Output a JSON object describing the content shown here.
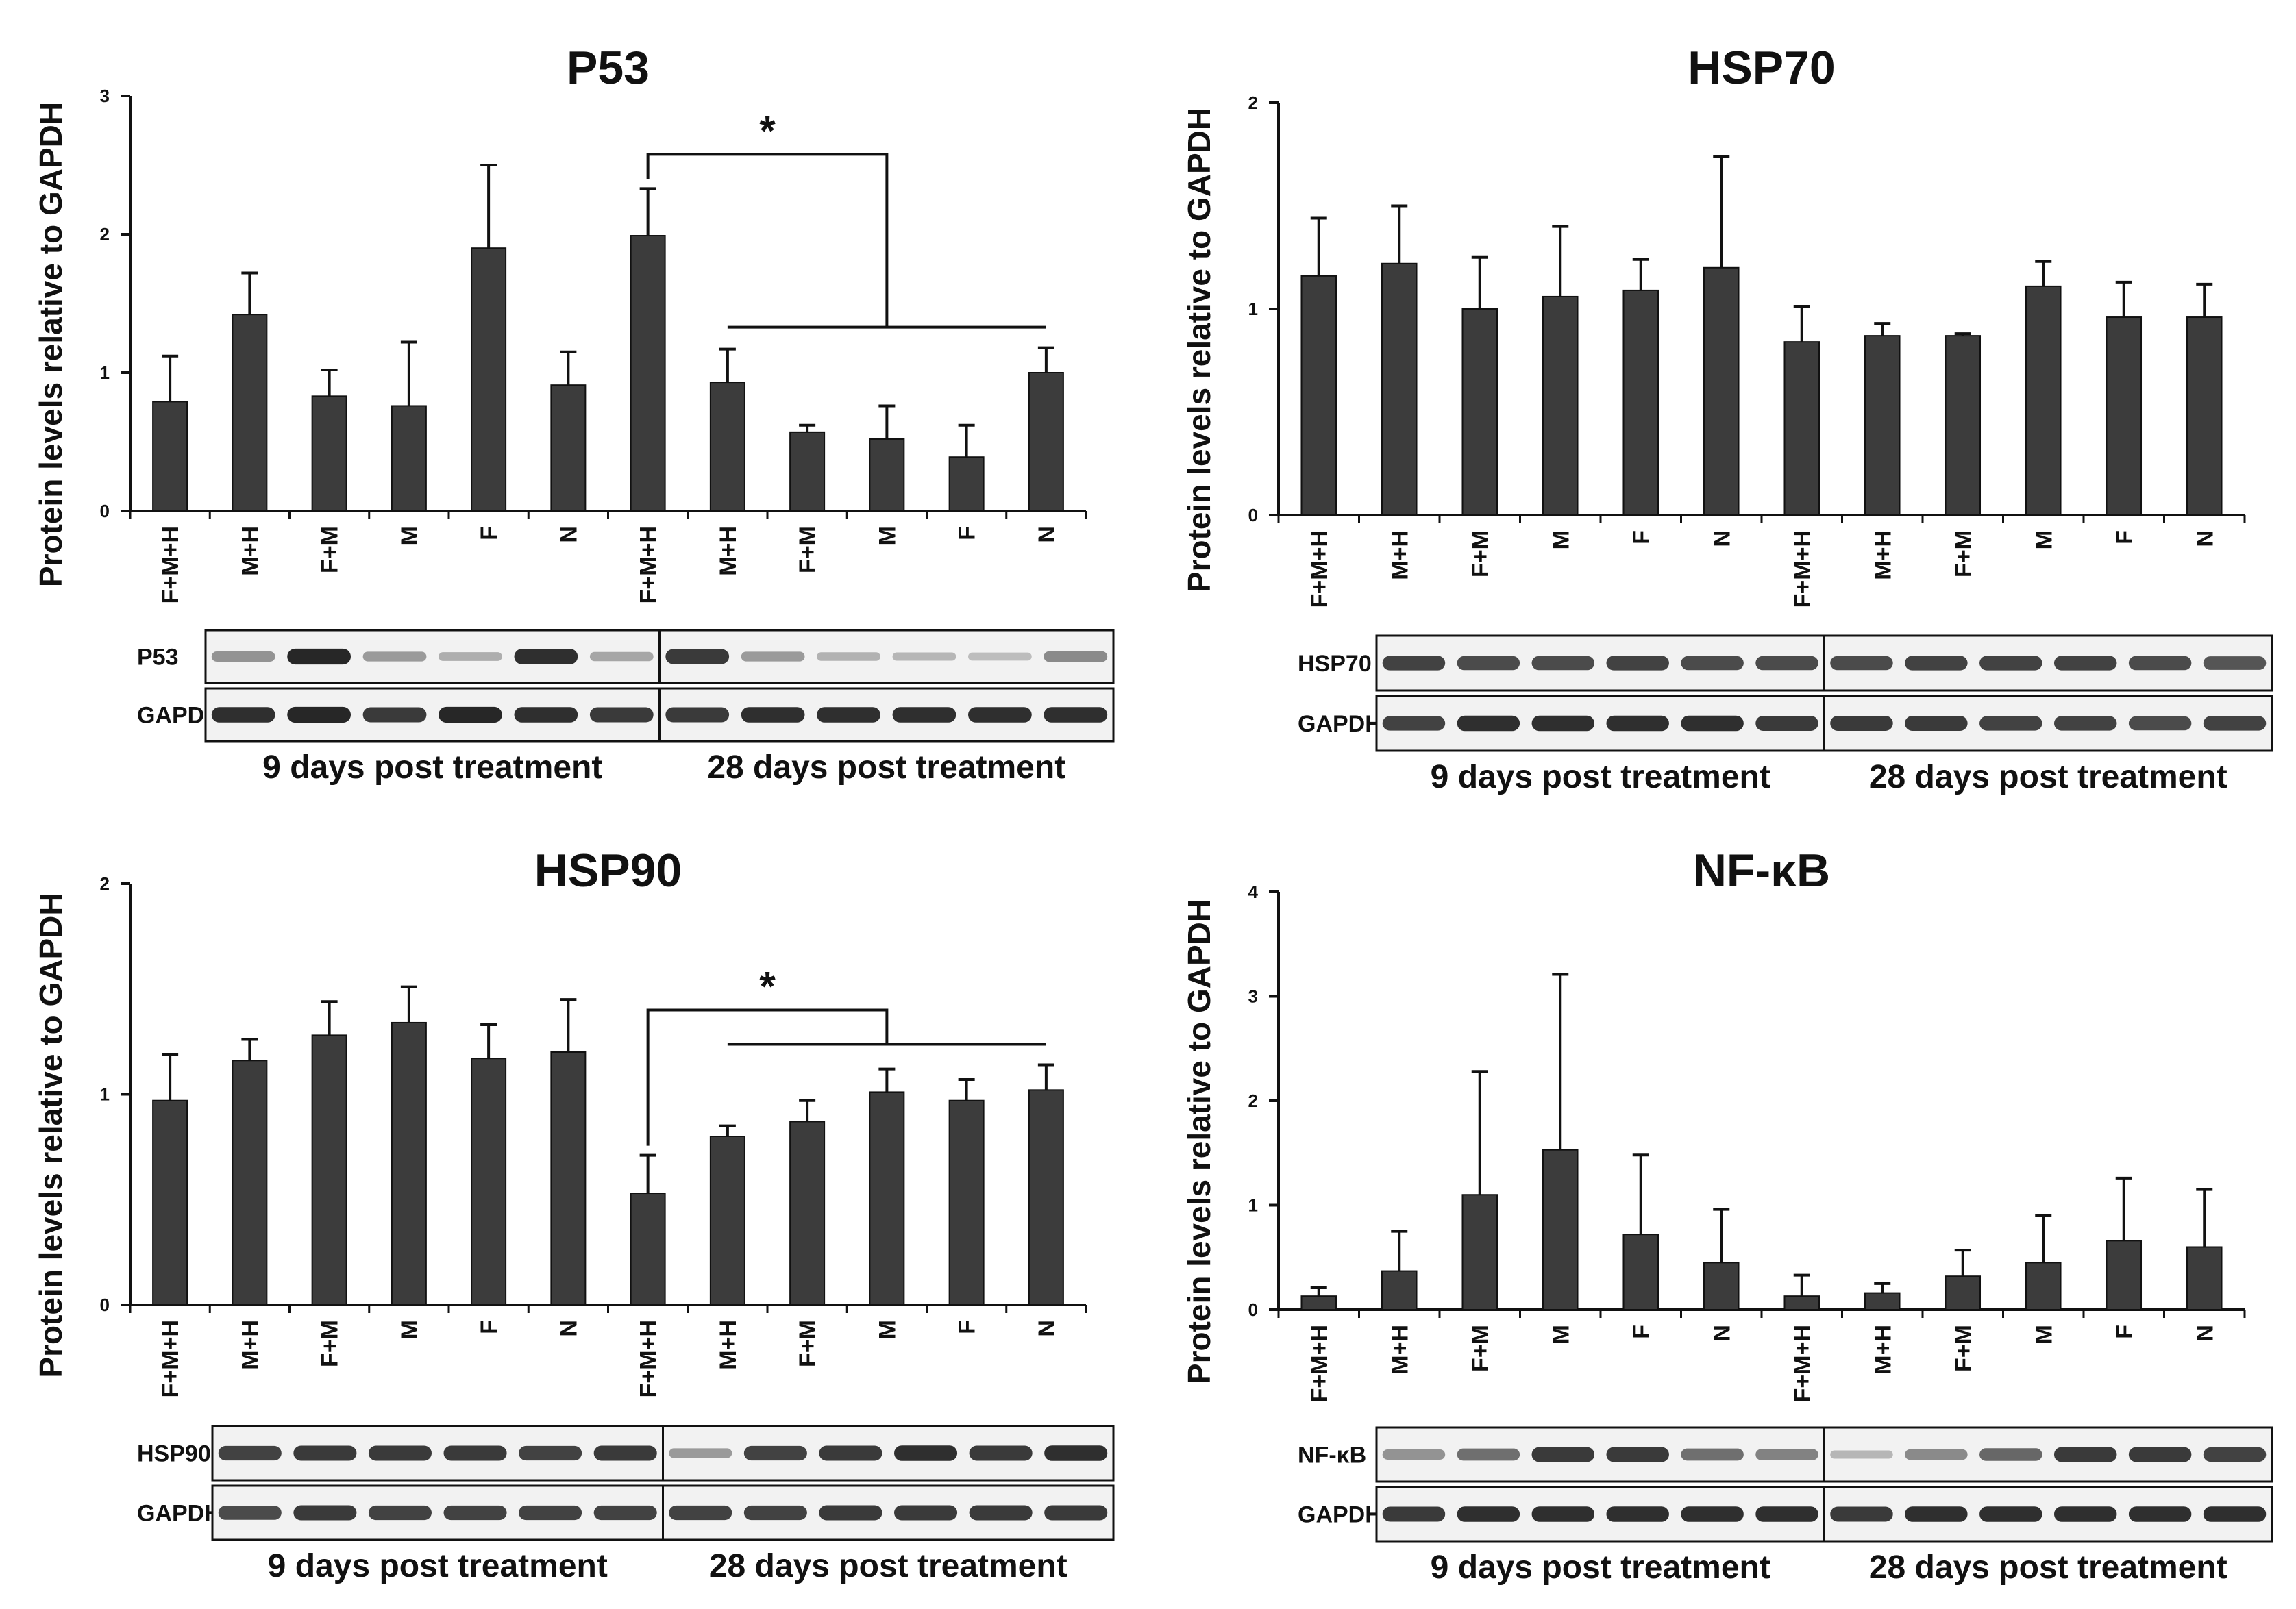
{
  "colors": {
    "bar": "#3c3c3c",
    "axis": "#111111",
    "text": "#111111",
    "blot_bg": "#f2f2f2",
    "band": "#1e1e1e"
  },
  "chart_data": [
    {
      "type": "bar",
      "title": "P53",
      "ylabel": "Protein levels relative to GAPDH",
      "xlabel": "",
      "ylim": [
        0,
        3
      ],
      "yticks": [
        "0",
        "1",
        "2",
        "3"
      ],
      "categories": [
        "F+M+H",
        "M+H",
        "F+M",
        "M",
        "F",
        "N",
        "F+M+H",
        "M+H",
        "F+M",
        "M",
        "F",
        "N"
      ],
      "values": [
        0.79,
        1.42,
        0.83,
        0.76,
        1.9,
        0.91,
        1.99,
        0.93,
        0.57,
        0.52,
        0.39,
        1.0
      ],
      "errors": [
        0.33,
        0.3,
        0.19,
        0.46,
        0.6,
        0.24,
        0.34,
        0.24,
        0.05,
        0.24,
        0.23,
        0.18
      ],
      "significance": {
        "label": "*",
        "from": 6,
        "to_group": [
          7,
          11
        ]
      },
      "blot": {
        "rows": [
          "P53",
          "GAPDH"
        ],
        "groups": [
          "9 days post treatment",
          "28 days post treatment"
        ],
        "intensity": [
          [
            0.35,
            0.95,
            0.3,
            0.2,
            0.9,
            0.25,
            0.85,
            0.3,
            0.18,
            0.15,
            0.12,
            0.4
          ],
          [
            0.9,
            0.95,
            0.85,
            0.95,
            0.9,
            0.85,
            0.85,
            0.9,
            0.9,
            0.9,
            0.9,
            0.9
          ]
        ]
      }
    },
    {
      "type": "bar",
      "title": "HSP70",
      "ylabel": "Protein levels relative to GAPDH",
      "xlabel": "",
      "ylim": [
        0,
        2
      ],
      "yticks": [
        "0",
        "1",
        "2"
      ],
      "categories": [
        "F+M+H",
        "M+H",
        "F+M",
        "M",
        "F",
        "N",
        "F+M+H",
        "M+H",
        "F+M",
        "M",
        "F",
        "N"
      ],
      "values": [
        1.16,
        1.22,
        1.0,
        1.06,
        1.09,
        1.2,
        0.84,
        0.87,
        0.87,
        1.11,
        0.96,
        0.96
      ],
      "errors": [
        0.28,
        0.28,
        0.25,
        0.34,
        0.15,
        0.54,
        0.17,
        0.06,
        0.01,
        0.12,
        0.17,
        0.16
      ],
      "blot": {
        "rows": [
          "HSP70",
          "GAPDH"
        ],
        "groups": [
          "9 days post treatment",
          "28 days post treatment"
        ],
        "intensity": [
          [
            0.8,
            0.75,
            0.75,
            0.8,
            0.75,
            0.75,
            0.75,
            0.8,
            0.8,
            0.8,
            0.75,
            0.7
          ],
          [
            0.8,
            0.9,
            0.9,
            0.9,
            0.9,
            0.85,
            0.85,
            0.85,
            0.8,
            0.8,
            0.75,
            0.8
          ]
        ]
      }
    },
    {
      "type": "bar",
      "title": "HSP90",
      "ylabel": "Protein levels relative to GAPDH",
      "xlabel": "",
      "ylim": [
        0,
        2
      ],
      "yticks": [
        "0",
        "1",
        "2"
      ],
      "categories": [
        "F+M+H",
        "M+H",
        "F+M",
        "M",
        "F",
        "N",
        "F+M+H",
        "M+H",
        "F+M",
        "M",
        "F",
        "N"
      ],
      "values": [
        0.97,
        1.16,
        1.28,
        1.34,
        1.17,
        1.2,
        0.53,
        0.8,
        0.87,
        1.01,
        0.97,
        1.02
      ],
      "errors": [
        0.22,
        0.1,
        0.16,
        0.17,
        0.16,
        0.25,
        0.18,
        0.05,
        0.1,
        0.11,
        0.1,
        0.12
      ],
      "significance": {
        "label": "*",
        "from": 6,
        "to_group": [
          7,
          11
        ]
      },
      "blot": {
        "rows": [
          "HSP90",
          "GAPDH"
        ],
        "groups": [
          "9 days post treatment",
          "28 days post treatment"
        ],
        "intensity": [
          [
            0.8,
            0.85,
            0.85,
            0.85,
            0.8,
            0.85,
            0.3,
            0.8,
            0.85,
            0.9,
            0.85,
            0.9
          ],
          [
            0.75,
            0.85,
            0.8,
            0.8,
            0.8,
            0.8,
            0.8,
            0.8,
            0.85,
            0.85,
            0.85,
            0.85
          ]
        ]
      }
    },
    {
      "type": "bar",
      "title": "NF-κB",
      "ylabel": "Protein levels relative to GAPDH",
      "xlabel": "",
      "ylim": [
        0,
        4
      ],
      "yticks": [
        "0",
        "1",
        "2",
        "3",
        "4"
      ],
      "categories": [
        "F+M+H",
        "M+H",
        "F+M",
        "M",
        "F",
        "N",
        "F+M+H",
        "M+H",
        "F+M",
        "M",
        "F",
        "N"
      ],
      "values": [
        0.13,
        0.37,
        1.1,
        1.53,
        0.72,
        0.45,
        0.13,
        0.16,
        0.32,
        0.45,
        0.66,
        0.6
      ],
      "errors": [
        0.08,
        0.38,
        1.18,
        1.68,
        0.76,
        0.51,
        0.2,
        0.09,
        0.25,
        0.45,
        0.6,
        0.55
      ],
      "blot": {
        "rows": [
          "NF-κB",
          "GAPDH"
        ],
        "groups": [
          "9 days post treatment",
          "28 days post treatment"
        ],
        "intensity": [
          [
            0.35,
            0.55,
            0.85,
            0.85,
            0.55,
            0.45,
            0.15,
            0.4,
            0.6,
            0.85,
            0.85,
            0.8
          ],
          [
            0.85,
            0.9,
            0.9,
            0.9,
            0.9,
            0.9,
            0.85,
            0.9,
            0.9,
            0.9,
            0.9,
            0.9
          ]
        ]
      }
    }
  ]
}
